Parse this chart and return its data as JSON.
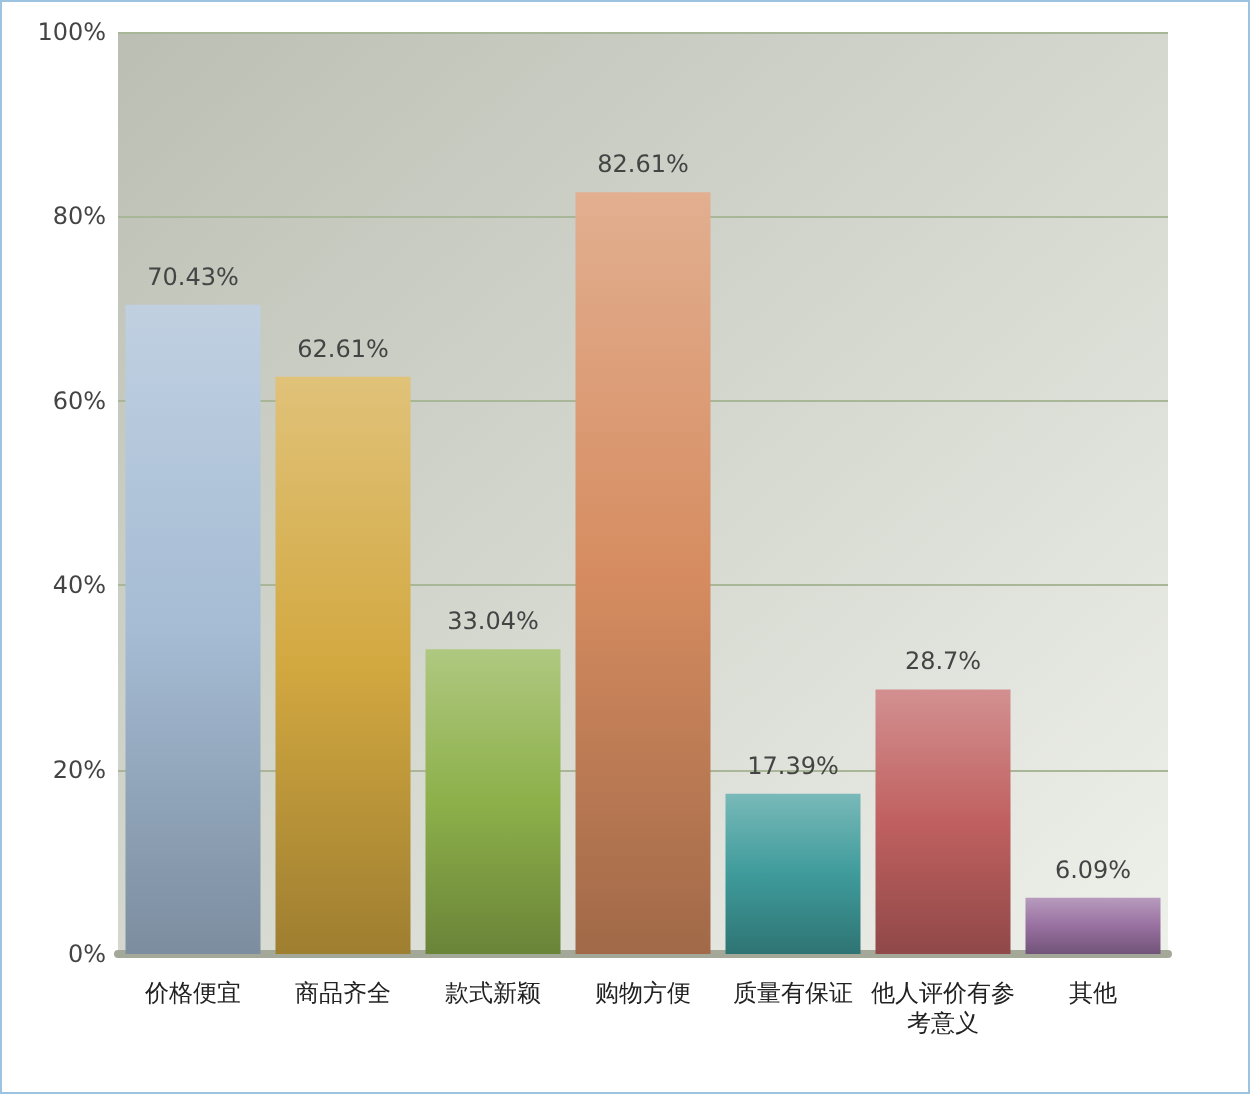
{
  "chart_data": {
    "type": "bar",
    "categories": [
      "价格便宜",
      "商品齐全",
      "款式新颖",
      "购物方便",
      "质量有保证",
      "他人评价有参考意义",
      "其他"
    ],
    "values": [
      70.43,
      62.61,
      33.04,
      82.61,
      17.39,
      28.7,
      6.09
    ],
    "value_labels": [
      "70.43%",
      "62.61%",
      "33.04%",
      "82.61%",
      "17.39%",
      "28.7%",
      "6.09%"
    ],
    "colors": [
      "#a5bcd4",
      "#d2a840",
      "#8db04a",
      "#d68c60",
      "#3f9b9b",
      "#c06060",
      "#9870a0"
    ],
    "ylim": [
      0,
      100
    ],
    "yticks": [
      {
        "value": 0,
        "label": "0%"
      },
      {
        "value": 20,
        "label": "20%"
      },
      {
        "value": 40,
        "label": "40%"
      },
      {
        "value": 60,
        "label": "60%"
      },
      {
        "value": 80,
        "label": "80%"
      },
      {
        "value": 100,
        "label": "100%"
      }
    ],
    "grid": "y"
  }
}
